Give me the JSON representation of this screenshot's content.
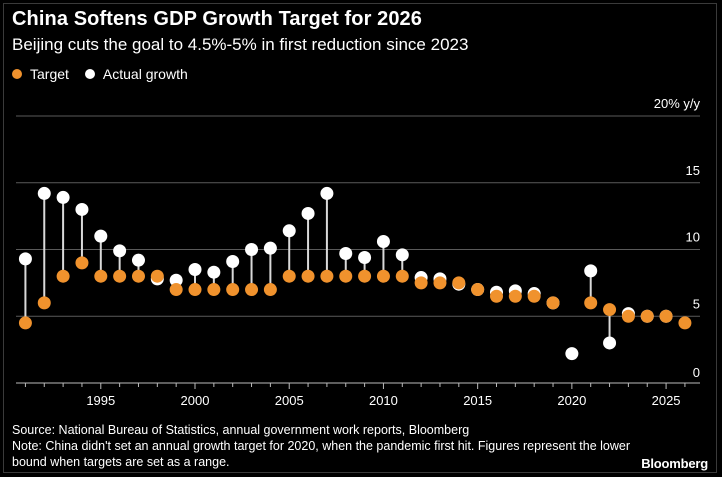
{
  "title": "China Softens GDP Growth Target for 2026",
  "subtitle": "Beijing cuts the goal to 4.5%-5% in first reduction since 2023",
  "legend": {
    "target_label": "Target",
    "actual_label": "Actual growth"
  },
  "colors": {
    "target": "#f0922d",
    "actual": "#ffffff",
    "stem": "#d9d9d9",
    "grid": "#5a5a5a",
    "background": "#000000"
  },
  "footer": {
    "source": "Source: National Bureau of Statistics, annual government work reports, Bloomberg",
    "note": "Note: China didn't set an annual growth target for 2020, when the pandemic first hit. Figures represent the lower bound when targets are set as a range."
  },
  "brand": "Bloomberg",
  "chart_data": {
    "type": "scatter",
    "title": "China Softens GDP Growth Target for 2026",
    "subtitle": "Beijing cuts the goal to 4.5%-5% in first reduction since 2023",
    "y_unit_label": "% y/y",
    "ylim": [
      0,
      20
    ],
    "y_ticks": [
      5,
      10,
      15,
      20
    ],
    "xlim": [
      1990.5,
      2026.8
    ],
    "x_ticks": [
      1995,
      2000,
      2005,
      2010,
      2015,
      2020,
      2025
    ],
    "grid": true,
    "legend_position": "top-left",
    "series": [
      {
        "name": "Target",
        "points": [
          [
            1991,
            4.5
          ],
          [
            1992,
            6
          ],
          [
            1993,
            8
          ],
          [
            1994,
            9
          ],
          [
            1995,
            8
          ],
          [
            1996,
            8
          ],
          [
            1997,
            8
          ],
          [
            1998,
            8
          ],
          [
            1999,
            7
          ],
          [
            2000,
            7
          ],
          [
            2001,
            7
          ],
          [
            2002,
            7
          ],
          [
            2003,
            7
          ],
          [
            2004,
            7
          ],
          [
            2005,
            8
          ],
          [
            2006,
            8
          ],
          [
            2007,
            8
          ],
          [
            2008,
            8
          ],
          [
            2009,
            8
          ],
          [
            2010,
            8
          ],
          [
            2011,
            8
          ],
          [
            2012,
            7.5
          ],
          [
            2013,
            7.5
          ],
          [
            2014,
            7.5
          ],
          [
            2015,
            7
          ],
          [
            2016,
            6.5
          ],
          [
            2017,
            6.5
          ],
          [
            2018,
            6.5
          ],
          [
            2019,
            6
          ],
          [
            2021,
            6
          ],
          [
            2022,
            5.5
          ],
          [
            2023,
            5
          ],
          [
            2024,
            5
          ],
          [
            2025,
            5
          ],
          [
            2026,
            4.5
          ]
        ]
      },
      {
        "name": "Actual growth",
        "points": [
          [
            1991,
            9.3
          ],
          [
            1992,
            14.2
          ],
          [
            1993,
            13.9
          ],
          [
            1994,
            13
          ],
          [
            1995,
            11
          ],
          [
            1996,
            9.9
          ],
          [
            1997,
            9.2
          ],
          [
            1998,
            7.8
          ],
          [
            1999,
            7.7
          ],
          [
            2000,
            8.5
          ],
          [
            2001,
            8.3
          ],
          [
            2002,
            9.1
          ],
          [
            2003,
            10
          ],
          [
            2004,
            10.1
          ],
          [
            2005,
            11.4
          ],
          [
            2006,
            12.7
          ],
          [
            2007,
            14.2
          ],
          [
            2008,
            9.7
          ],
          [
            2009,
            9.4
          ],
          [
            2010,
            10.6
          ],
          [
            2011,
            9.6
          ],
          [
            2012,
            7.9
          ],
          [
            2013,
            7.8
          ],
          [
            2014,
            7.4
          ],
          [
            2015,
            7
          ],
          [
            2016,
            6.8
          ],
          [
            2017,
            6.9
          ],
          [
            2018,
            6.7
          ],
          [
            2019,
            6
          ],
          [
            2020,
            2.2
          ],
          [
            2021,
            8.4
          ],
          [
            2022,
            3
          ],
          [
            2023,
            5.2
          ],
          [
            2024,
            5
          ],
          [
            2025,
            5
          ]
        ]
      }
    ]
  }
}
